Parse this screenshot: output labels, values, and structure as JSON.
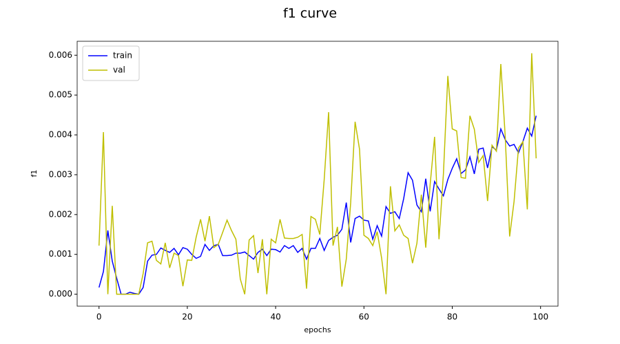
{
  "chart_data": {
    "type": "line",
    "title": "f1 curve",
    "xlabel": "epochs",
    "ylabel": "f1",
    "x": [
      0,
      1,
      2,
      3,
      4,
      5,
      6,
      7,
      8,
      9,
      10,
      11,
      12,
      13,
      14,
      15,
      16,
      17,
      18,
      19,
      20,
      21,
      22,
      23,
      24,
      25,
      26,
      27,
      28,
      29,
      30,
      31,
      32,
      33,
      34,
      35,
      36,
      37,
      38,
      39,
      40,
      41,
      42,
      43,
      44,
      45,
      46,
      47,
      48,
      49,
      50,
      51,
      52,
      53,
      54,
      55,
      56,
      57,
      58,
      59,
      60,
      61,
      62,
      63,
      64,
      65,
      66,
      67,
      68,
      69,
      70,
      71,
      72,
      73,
      74,
      75,
      76,
      77,
      78,
      79,
      80,
      81,
      82,
      83,
      84,
      85,
      86,
      87,
      88,
      89,
      90,
      91,
      92,
      93,
      94,
      95,
      96,
      97,
      98,
      99
    ],
    "series": [
      {
        "name": "train",
        "color": "#0000ff",
        "values": [
          0.00017,
          0.00057,
          0.0016,
          0.00083,
          0.0004,
          0,
          0,
          5e-05,
          2e-05,
          0,
          0.00017,
          0.00083,
          0.00098,
          0.001,
          0.00116,
          0.0011,
          0.00105,
          0.00115,
          0.00099,
          0.00117,
          0.00113,
          0.001,
          0.0009,
          0.00095,
          0.00125,
          0.0011,
          0.00122,
          0.00125,
          0.00097,
          0.00097,
          0.00098,
          0.00103,
          0.00103,
          0.00106,
          0.00097,
          0.00088,
          0.00105,
          0.00113,
          0.00097,
          0.00113,
          0.00112,
          0.00106,
          0.00122,
          0.00115,
          0.00122,
          0.00105,
          0.00115,
          0.00088,
          0.00115,
          0.00115,
          0.0014,
          0.0011,
          0.00135,
          0.00143,
          0.00148,
          0.00163,
          0.0023,
          0.0013,
          0.0019,
          0.00196,
          0.00186,
          0.00184,
          0.00138,
          0.00172,
          0.00146,
          0.0022,
          0.00203,
          0.00207,
          0.0019,
          0.0024,
          0.00305,
          0.00286,
          0.00224,
          0.00207,
          0.0029,
          0.00208,
          0.00283,
          0.00264,
          0.00247,
          0.00288,
          0.00316,
          0.0034,
          0.00303,
          0.00312,
          0.00345,
          0.00302,
          0.00364,
          0.00367,
          0.00317,
          0.0037,
          0.00362,
          0.00415,
          0.00388,
          0.00372,
          0.00376,
          0.00355,
          0.00383,
          0.00417,
          0.00397,
          0.00448
        ]
      },
      {
        "name": "val",
        "color": "#bfbf00",
        "values": [
          0.00122,
          0.00407,
          0,
          0.00222,
          0,
          0,
          0,
          0,
          0,
          0,
          0.00052,
          0.00129,
          0.00133,
          0.00085,
          0.00076,
          0.00129,
          0.00066,
          0.00103,
          0.00097,
          0.0002,
          0.00086,
          0.00085,
          0.00143,
          0.00188,
          0.00133,
          0.00196,
          0.00117,
          0.00125,
          0.00155,
          0.00186,
          0.0016,
          0.00138,
          0.00038,
          0,
          0.00136,
          0.00147,
          0.00053,
          0.00138,
          0,
          0.00138,
          0.00129,
          0.00188,
          0.00141,
          0.0014,
          0.0014,
          0.00143,
          0.0015,
          0.00014,
          0.00195,
          0.00188,
          0.0015,
          0.00288,
          0.00457,
          0.00122,
          0.00169,
          0.00019,
          0.00088,
          0.0023,
          0.00433,
          0.00364,
          0.00148,
          0.0014,
          0.00122,
          0.00157,
          0.00091,
          0,
          0.00271,
          0.00159,
          0.00174,
          0.00148,
          0.0014,
          0.00078,
          0.00128,
          0.0025,
          0.00117,
          0.00276,
          0.00395,
          0.00138,
          0.00302,
          0.00548,
          0.00415,
          0.0041,
          0.00293,
          0.00291,
          0.00448,
          0.00414,
          0.00331,
          0.00348,
          0.00234,
          0.00374,
          0.00359,
          0.00578,
          0.00395,
          0.00145,
          0.00233,
          0.00367,
          0.00383,
          0.00213,
          0.00605,
          0.00341
        ]
      }
    ],
    "xlim": [
      -4.95,
      103.95
    ],
    "ylim": [
      -0.0003,
      0.00635
    ],
    "xticks": [
      0,
      20,
      40,
      60,
      80,
      100
    ],
    "yticks": [
      {
        "value": 0,
        "label": "0.000"
      },
      {
        "value": 0.001,
        "label": "0.001"
      },
      {
        "value": 0.002,
        "label": "0.002"
      },
      {
        "value": 0.003,
        "label": "0.003"
      },
      {
        "value": 0.004,
        "label": "0.004"
      },
      {
        "value": 0.005,
        "label": "0.005"
      },
      {
        "value": 0.006,
        "label": "0.006"
      }
    ],
    "grid": false,
    "legend": "upper left"
  }
}
